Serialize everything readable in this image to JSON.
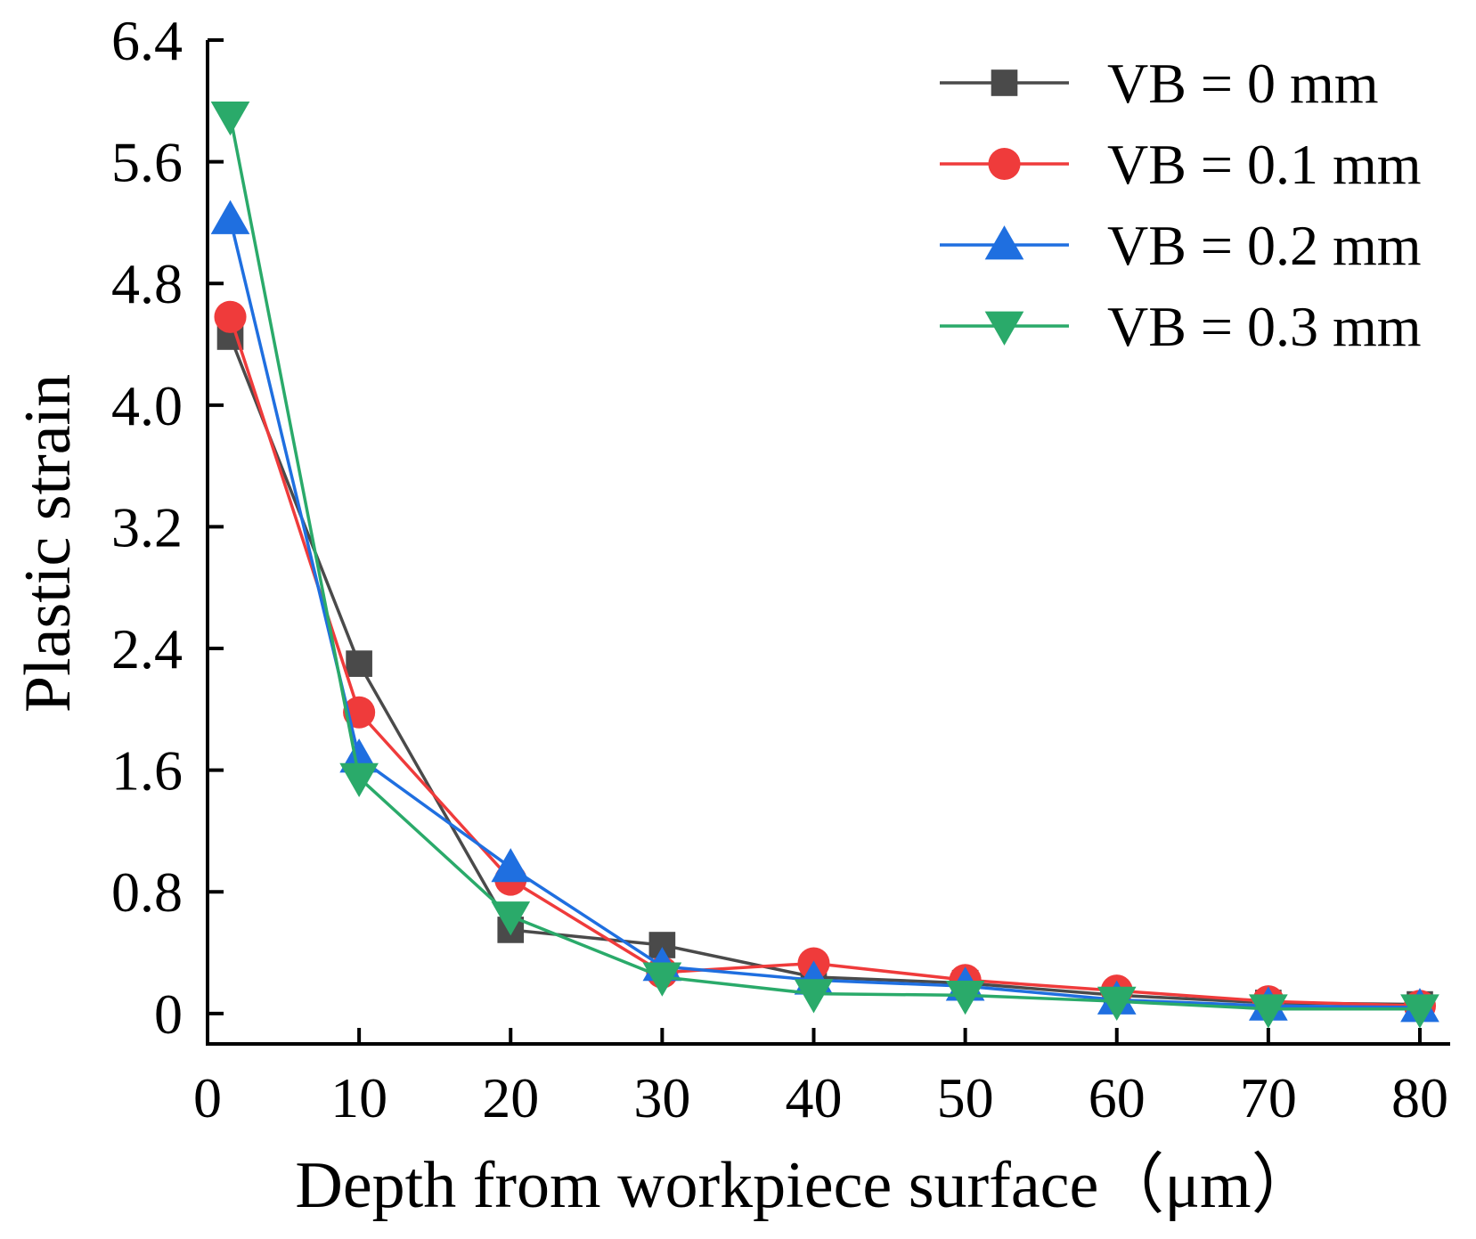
{
  "chart_data": {
    "type": "line",
    "xlabel": "Depth from workpiece surface（μm）",
    "ylabel": "Plastic strain",
    "xlim": [
      0,
      82
    ],
    "ylim": [
      -0.2,
      6.4
    ],
    "x_ticks": [
      "0",
      "10",
      "20",
      "30",
      "40",
      "50",
      "60",
      "70",
      "80"
    ],
    "y_ticks": [
      "0",
      "0.8",
      "1.6",
      "2.4",
      "3.2",
      "4.0",
      "4.8",
      "5.6",
      "6.4"
    ],
    "x": [
      1.5,
      10,
      20,
      30,
      40,
      50,
      60,
      70,
      80
    ],
    "legend_position": "top-right",
    "grid": false,
    "series": [
      {
        "name": "VB = 0 mm",
        "marker": "square",
        "color": "#4a4a4a",
        "values": [
          4.45,
          2.3,
          0.55,
          0.45,
          0.24,
          0.2,
          0.12,
          0.07,
          0.06
        ]
      },
      {
        "name": "VB = 0.1 mm",
        "marker": "circle",
        "color": "#ef3b3b",
        "values": [
          4.58,
          1.98,
          0.88,
          0.27,
          0.33,
          0.22,
          0.15,
          0.08,
          0.05
        ]
      },
      {
        "name": "VB = 0.2 mm",
        "marker": "triangle-up",
        "color": "#1f6fe0",
        "values": [
          5.22,
          1.68,
          0.96,
          0.31,
          0.22,
          0.18,
          0.09,
          0.05,
          0.04
        ]
      },
      {
        "name": "VB = 0.3 mm",
        "marker": "triangle-down",
        "color": "#2aaa6a",
        "values": [
          5.9,
          1.55,
          0.64,
          0.24,
          0.13,
          0.12,
          0.08,
          0.03,
          0.03
        ]
      }
    ]
  }
}
